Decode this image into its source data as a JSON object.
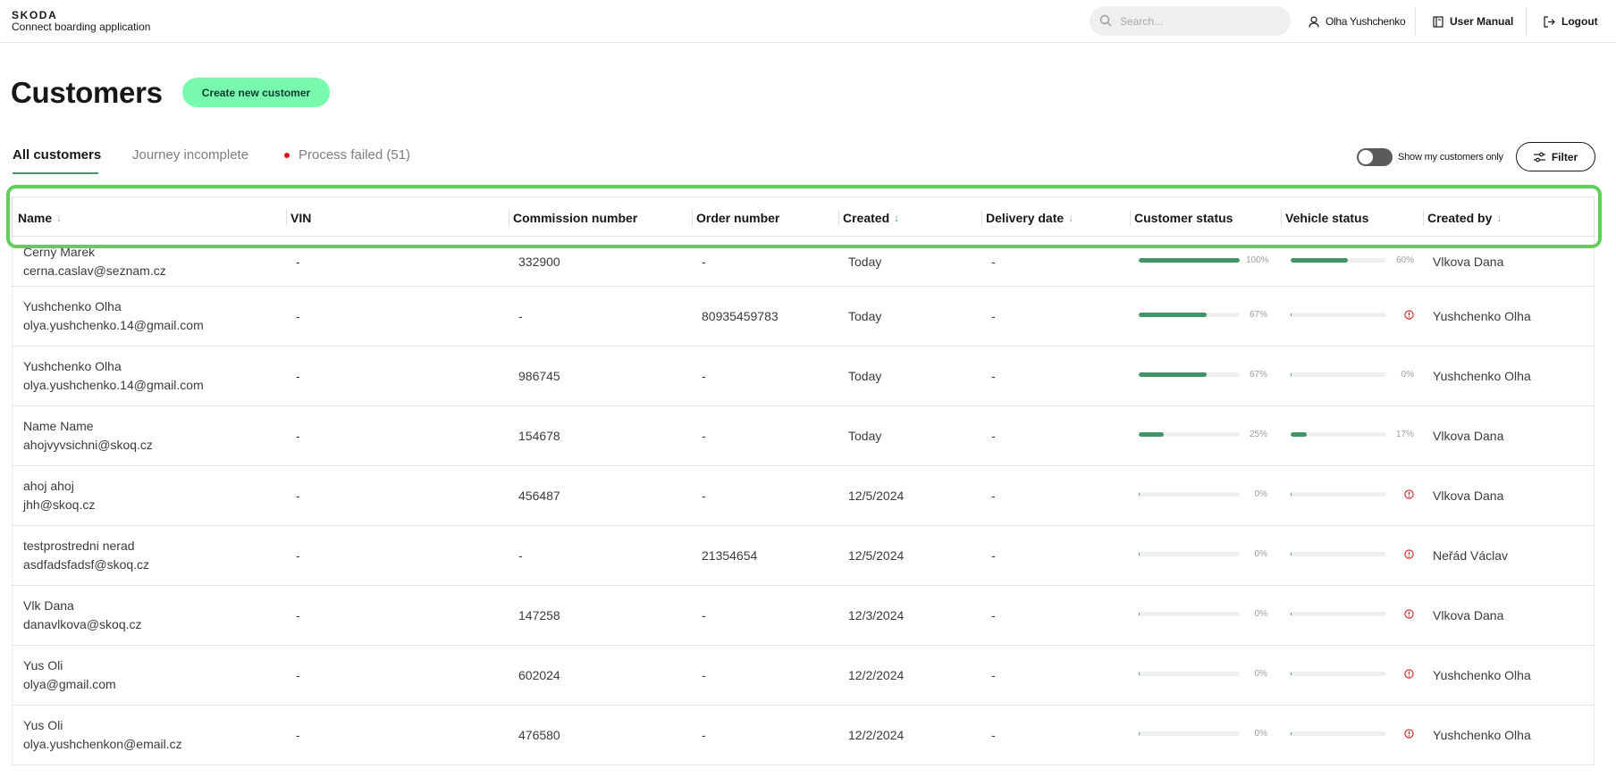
{
  "app": {
    "brand": "SKODA",
    "subtitle": "Connect boarding application"
  },
  "topbar": {
    "search_placeholder": "Search...",
    "user_name": "Olha Yushchenko",
    "manual_label": "User Manual",
    "logout_label": "Logout"
  },
  "page": {
    "title": "Customers",
    "create_button": "Create new customer"
  },
  "tabs": [
    {
      "label": "All customers",
      "active": true
    },
    {
      "label": "Journey incomplete",
      "active": false
    },
    {
      "label": "Process failed (51)",
      "active": false
    }
  ],
  "controls": {
    "toggle_label": "Show my customers only",
    "toggle_on": false,
    "filter_label": "Filter"
  },
  "colors": {
    "accent_green": "#419468",
    "button_green": "#78faae",
    "error_red": "#d41b1b",
    "highlight_green": "#5ed05a"
  },
  "table": {
    "columns": [
      {
        "label": "Name",
        "sort": "default"
      },
      {
        "label": "VIN",
        "sort": "none"
      },
      {
        "label": "Commission number",
        "sort": "none"
      },
      {
        "label": "Order number",
        "sort": "none"
      },
      {
        "label": "Created",
        "sort": "active-desc"
      },
      {
        "label": "Delivery date",
        "sort": "default"
      },
      {
        "label": "Customer status",
        "sort": "none"
      },
      {
        "label": "Vehicle status",
        "sort": "none"
      },
      {
        "label": "Created by",
        "sort": "default"
      }
    ],
    "rows": [
      {
        "name": "Černý Marek",
        "email": "cerna.caslav@seznam.cz",
        "vin": "-",
        "commission": "332900",
        "order": "-",
        "created": "Today",
        "delivery": "-",
        "customer_status": 100,
        "customer_status_label": "100%",
        "vehicle_status": 60,
        "vehicle_status_label": "60%",
        "vehicle_error": false,
        "created_by": "Vlkova Dana"
      },
      {
        "name": "Yushchenko Olha",
        "email": "olya.yushchenko.14@gmail.com",
        "vin": "-",
        "commission": "-",
        "order": "80935459783",
        "created": "Today",
        "delivery": "-",
        "customer_status": 67,
        "customer_status_label": "67%",
        "vehicle_status": 0,
        "vehicle_status_label": "",
        "vehicle_error": true,
        "created_by": "Yushchenko Olha"
      },
      {
        "name": "Yushchenko Olha",
        "email": "olya.yushchenko.14@gmail.com",
        "vin": "-",
        "commission": "986745",
        "order": "-",
        "created": "Today",
        "delivery": "-",
        "customer_status": 67,
        "customer_status_label": "67%",
        "vehicle_status": 0,
        "vehicle_status_label": "0%",
        "vehicle_error": false,
        "created_by": "Yushchenko Olha"
      },
      {
        "name": "Name Name",
        "email": "ahojvyvsichni@skoq.cz",
        "vin": "-",
        "commission": "154678",
        "order": "-",
        "created": "Today",
        "delivery": "-",
        "customer_status": 25,
        "customer_status_label": "25%",
        "vehicle_status": 17,
        "vehicle_status_label": "17%",
        "vehicle_error": false,
        "created_by": "Vlkova Dana"
      },
      {
        "name": "ahoj ahoj",
        "email": "jhh@skoq.cz",
        "vin": "-",
        "commission": "456487",
        "order": "-",
        "created": "12/5/2024",
        "delivery": "-",
        "customer_status": 0,
        "customer_status_label": "0%",
        "vehicle_status": 0,
        "vehicle_status_label": "",
        "vehicle_error": true,
        "created_by": "Vlkova Dana"
      },
      {
        "name": "testprostredni nerad",
        "email": "asdfadsfadsf@skoq.cz",
        "vin": "-",
        "commission": "-",
        "order": "21354654",
        "created": "12/5/2024",
        "delivery": "-",
        "customer_status": 0,
        "customer_status_label": "0%",
        "vehicle_status": 0,
        "vehicle_status_label": "",
        "vehicle_error": true,
        "created_by": "Neřád Václav"
      },
      {
        "name": "Vlk Dana",
        "email": "danavlkova@skoq.cz",
        "vin": "-",
        "commission": "147258",
        "order": "-",
        "created": "12/3/2024",
        "delivery": "-",
        "customer_status": 0,
        "customer_status_label": "0%",
        "vehicle_status": 0,
        "vehicle_status_label": "",
        "vehicle_error": true,
        "created_by": "Vlkova Dana"
      },
      {
        "name": "Yus Oli",
        "email": "olya@gmail.com",
        "vin": "-",
        "commission": "602024",
        "order": "-",
        "created": "12/2/2024",
        "delivery": "-",
        "customer_status": 0,
        "customer_status_label": "0%",
        "vehicle_status": 0,
        "vehicle_status_label": "",
        "vehicle_error": true,
        "created_by": "Yushchenko Olha"
      },
      {
        "name": "Yus Oli",
        "email": "olya.yushchenkon@email.cz",
        "vin": "-",
        "commission": "476580",
        "order": "-",
        "created": "12/2/2024",
        "delivery": "-",
        "customer_status": 0,
        "customer_status_label": "0%",
        "vehicle_status": 0,
        "vehicle_status_label": "",
        "vehicle_error": true,
        "created_by": "Yushchenko Olha"
      }
    ]
  }
}
